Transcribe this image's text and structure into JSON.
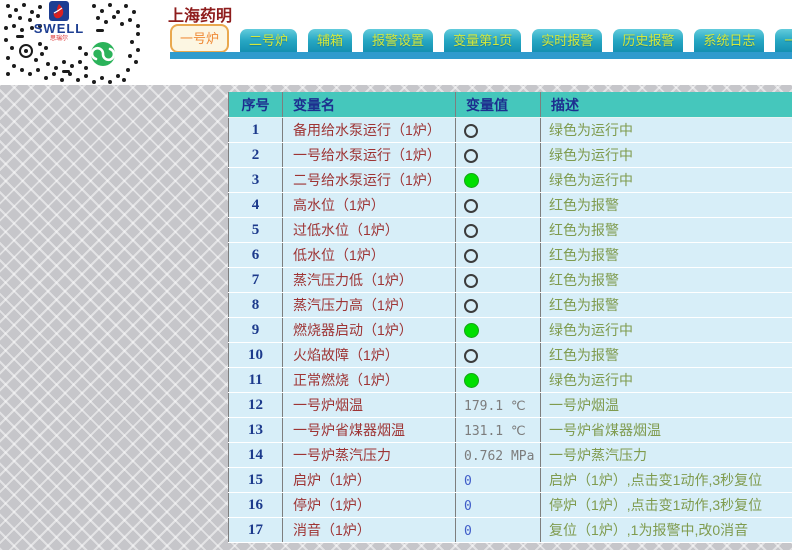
{
  "page": {
    "title": "上海药明"
  },
  "brand": {
    "logo_text": "SWELL",
    "logo_subtext": "思瑞尔"
  },
  "tabs": [
    {
      "label": "一号炉",
      "active": true
    },
    {
      "label": "二号炉",
      "active": false
    },
    {
      "label": "辅箱",
      "active": false
    },
    {
      "label": "报警设置",
      "active": false
    },
    {
      "label": "变量第1页",
      "active": false
    },
    {
      "label": "实时报警",
      "active": false
    },
    {
      "label": "历史报警",
      "active": false
    },
    {
      "label": "系统日志",
      "active": false
    },
    {
      "label": "一号",
      "active": false,
      "truncated": true
    }
  ],
  "table": {
    "columns": [
      "序号",
      "变量名",
      "变量值",
      "描述"
    ],
    "rows": [
      {
        "no": "1",
        "name": "备用给水泵运行（1炉）",
        "value": {
          "type": "indicator",
          "state": "off"
        },
        "desc": "绿色为运行中"
      },
      {
        "no": "2",
        "name": "一号给水泵运行（1炉）",
        "value": {
          "type": "indicator",
          "state": "off"
        },
        "desc": "绿色为运行中"
      },
      {
        "no": "3",
        "name": "二号给水泵运行（1炉）",
        "value": {
          "type": "indicator",
          "state": "on"
        },
        "desc": "绿色为运行中"
      },
      {
        "no": "4",
        "name": "高水位（1炉）",
        "value": {
          "type": "indicator",
          "state": "off"
        },
        "desc": "红色为报警"
      },
      {
        "no": "5",
        "name": "过低水位（1炉）",
        "value": {
          "type": "indicator",
          "state": "off"
        },
        "desc": "红色为报警"
      },
      {
        "no": "6",
        "name": "低水位（1炉）",
        "value": {
          "type": "indicator",
          "state": "off"
        },
        "desc": "红色为报警"
      },
      {
        "no": "7",
        "name": "蒸汽压力低（1炉）",
        "value": {
          "type": "indicator",
          "state": "off"
        },
        "desc": "红色为报警"
      },
      {
        "no": "8",
        "name": "蒸汽压力高（1炉）",
        "value": {
          "type": "indicator",
          "state": "off"
        },
        "desc": "红色为报警"
      },
      {
        "no": "9",
        "name": "燃烧器启动（1炉）",
        "value": {
          "type": "indicator",
          "state": "on"
        },
        "desc": "绿色为运行中"
      },
      {
        "no": "10",
        "name": "火焰故障（1炉）",
        "value": {
          "type": "indicator",
          "state": "off"
        },
        "desc": "红色为报警"
      },
      {
        "no": "11",
        "name": "正常燃烧（1炉）",
        "value": {
          "type": "indicator",
          "state": "on"
        },
        "desc": "绿色为运行中"
      },
      {
        "no": "12",
        "name": "一号炉烟温",
        "value": {
          "type": "text",
          "text": "179.1 ℃"
        },
        "desc": "一号炉烟温"
      },
      {
        "no": "13",
        "name": "一号炉省煤器烟温",
        "value": {
          "type": "text",
          "text": "131.1 ℃"
        },
        "desc": "一号炉省煤器烟温"
      },
      {
        "no": "14",
        "name": "一号炉蒸汽压力",
        "value": {
          "type": "text",
          "text": "0.762 MPa"
        },
        "desc": "一号炉蒸汽压力"
      },
      {
        "no": "15",
        "name": "启炉（1炉）",
        "value": {
          "type": "zero",
          "text": "0"
        },
        "desc": "启炉（1炉）,点击变1动作,3秒复位"
      },
      {
        "no": "16",
        "name": "停炉（1炉）",
        "value": {
          "type": "zero",
          "text": "0"
        },
        "desc": "停炉（1炉）,点击变1动作,3秒复位"
      },
      {
        "no": "17",
        "name": "消音（1炉）",
        "value": {
          "type": "zero",
          "text": "0"
        },
        "desc": "复位（1炉）,1为报警中,改0消音"
      }
    ]
  },
  "colors": {
    "header_bg": "#45c7bc",
    "row_bg": "#d7eef8",
    "indicator_on": "#00df00",
    "tab_bg": "#1f9fbd",
    "tab_text": "#d3e83c",
    "active_tab_text": "#ef8a36",
    "active_tab_border": "#e9a84e",
    "accent_bar": "#2f9bcd",
    "title_text": "#8e1c1c",
    "name_text": "#9e3434",
    "desc_text": "#7f9b4e"
  }
}
